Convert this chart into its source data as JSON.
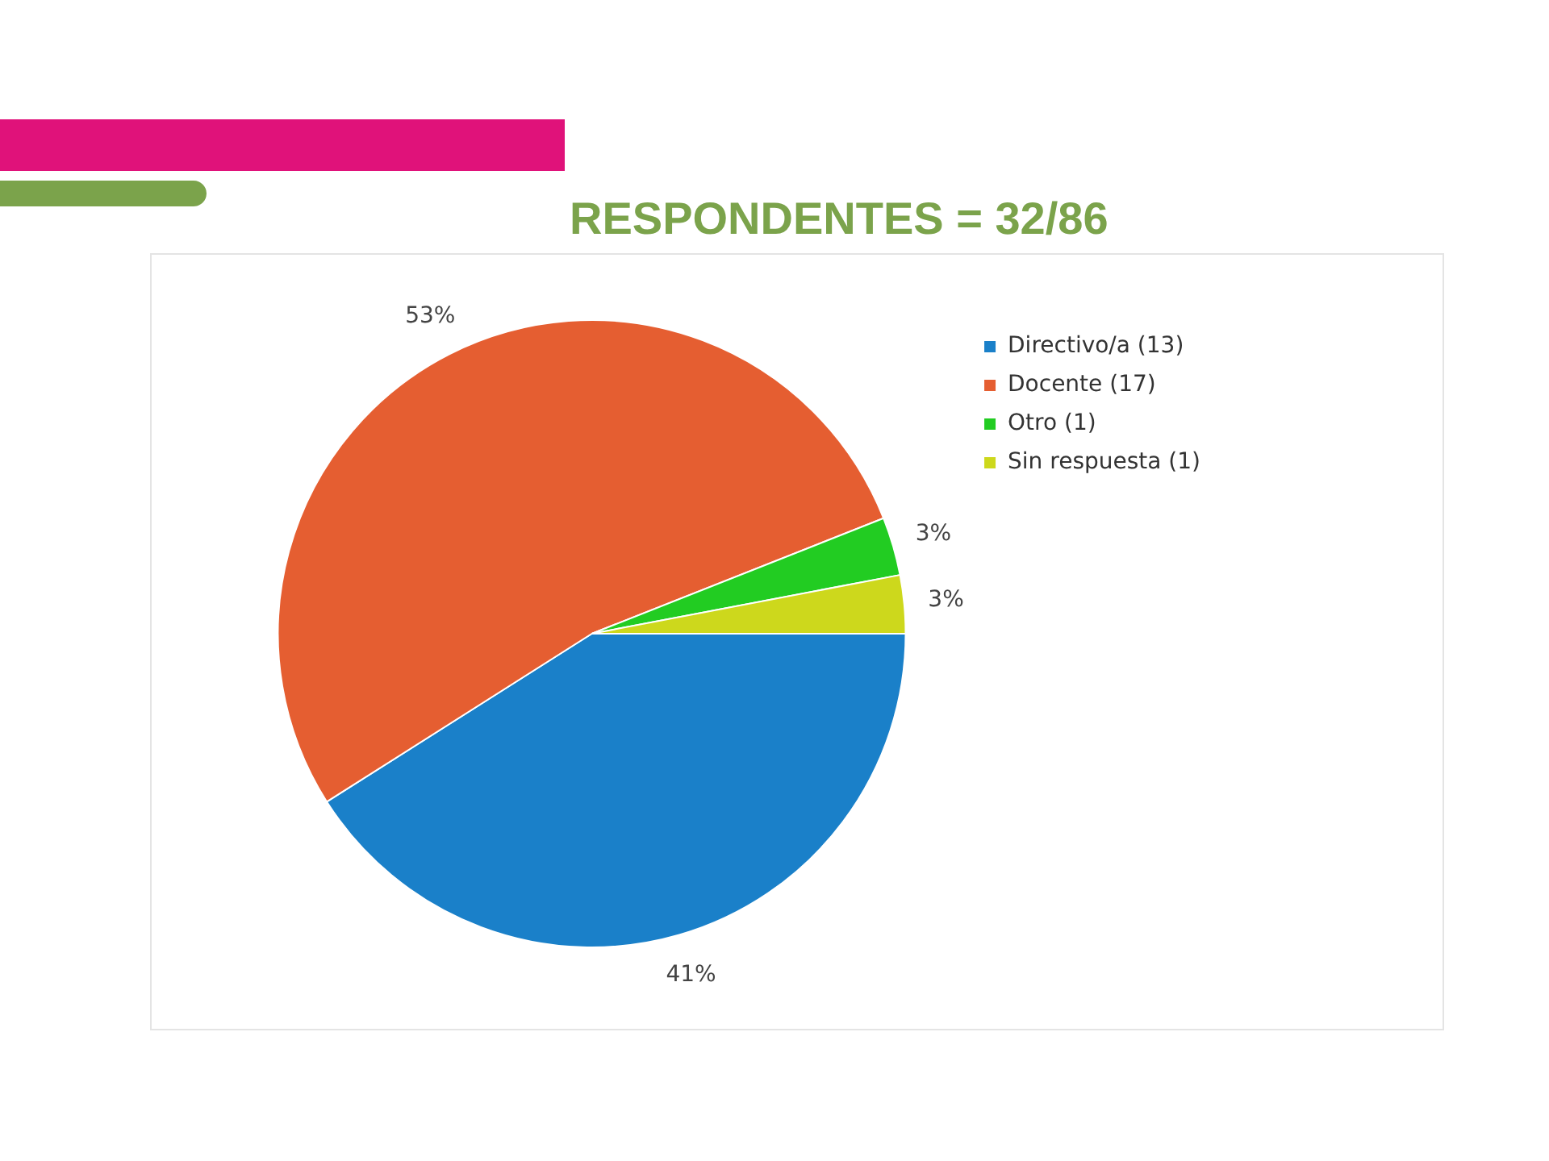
{
  "chart_data": {
    "type": "pie",
    "title": "RESPONDENTES = 32/86",
    "categories": [
      "Directivo/a (13)",
      "Docente (17)",
      "Otro (1)",
      "Sin respuesta (1)"
    ],
    "values": [
      41,
      53,
      3,
      3
    ],
    "value_labels": [
      "41%",
      "53%",
      "3%",
      "3%"
    ],
    "colors": [
      "#1a80c9",
      "#e55e31",
      "#22cc22",
      "#cdd81c"
    ],
    "legend": "top right"
  }
}
